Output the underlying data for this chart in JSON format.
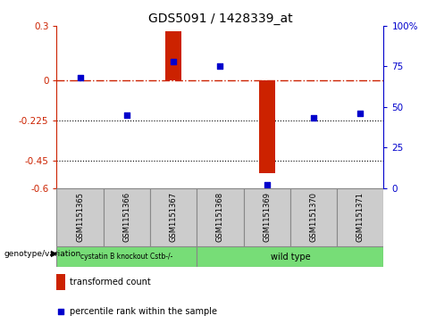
{
  "title": "GDS5091 / 1428339_at",
  "samples": [
    "GSM1151365",
    "GSM1151366",
    "GSM1151367",
    "GSM1151368",
    "GSM1151369",
    "GSM1151370",
    "GSM1151371"
  ],
  "transformed_count": [
    0.0,
    0.0,
    0.27,
    0.0,
    -0.52,
    0.0,
    0.0
  ],
  "percentile_rank_pct": [
    68,
    45,
    78,
    75,
    2,
    43,
    46
  ],
  "left_ylim": [
    -0.6,
    0.3
  ],
  "right_ylim": [
    0,
    100
  ],
  "left_yticks": [
    -0.6,
    -0.45,
    -0.225,
    0,
    0.3
  ],
  "right_yticks": [
    0,
    25,
    50,
    75,
    100
  ],
  "left_ytick_labels": [
    "-0.6",
    "-0.45",
    "-0.225",
    "0",
    "0.3"
  ],
  "right_ytick_labels": [
    "0",
    "25",
    "50",
    "75",
    "100%"
  ],
  "hline_y": 0.0,
  "dotted_hlines": [
    -0.225,
    -0.45
  ],
  "bar_color": "#cc2200",
  "dot_color": "#0000cc",
  "hline_color": "#cc2200",
  "left_axis_color": "#cc2200",
  "right_axis_color": "#0000cc",
  "group1_samples": [
    0,
    1,
    2
  ],
  "group2_samples": [
    3,
    4,
    5,
    6
  ],
  "group1_label": "cystatin B knockout Cstb-/-",
  "group2_label": "wild type",
  "group_color": "#77dd77",
  "genotype_label": "genotype/variation",
  "legend_bar_label": "transformed count",
  "legend_dot_label": "percentile rank within the sample",
  "bar_width": 0.35,
  "sample_box_color": "#cccccc",
  "bg_color": "#ffffff"
}
